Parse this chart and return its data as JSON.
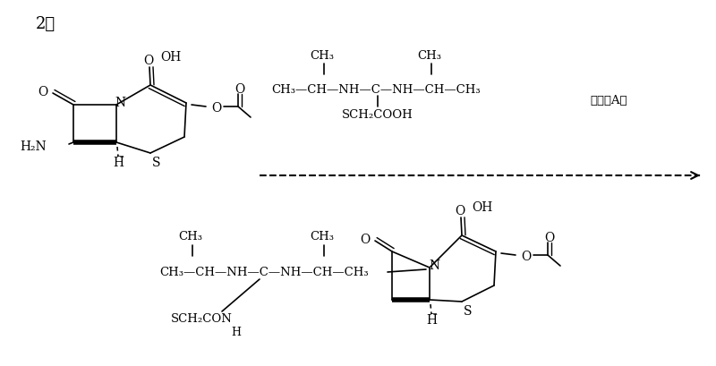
{
  "bg": "#ffffff",
  "figsize": [
    8.0,
    4.1
  ],
  "dpi": 100,
  "label_2": "2、",
  "reagent_main": "CH₃—CH—NH—C—NH—CH—CH₃",
  "reagent_sub": "SCH₂COOH",
  "reagent_ch3_1": "CH₃",
  "reagent_ch3_2": "CH₃",
  "reagent_label": "溶液（A）",
  "product_chain": "CH₃—CH—NH—C—NH—CH—CH₃",
  "product_sub": "SCH₂CON",
  "product_subH": "H"
}
